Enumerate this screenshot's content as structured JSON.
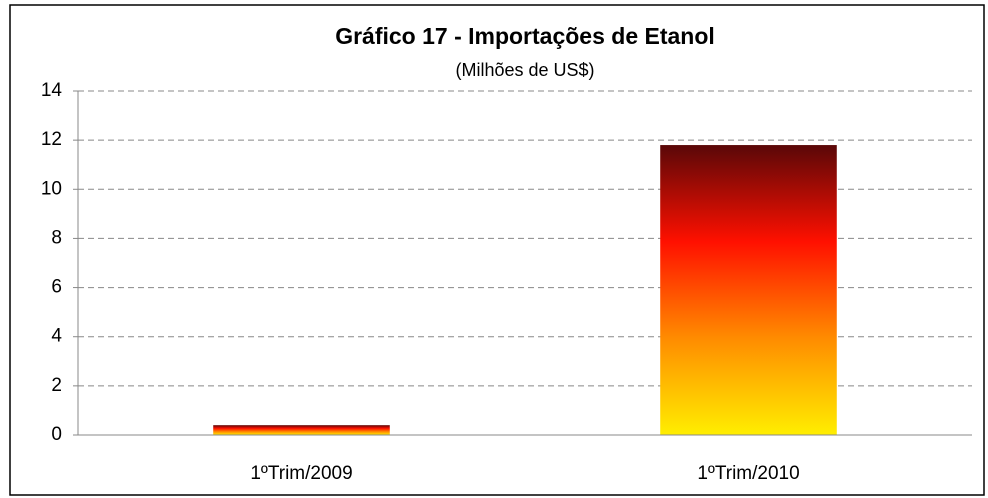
{
  "chart_data": {
    "type": "bar",
    "title": "Gráfico 17 - Importações de Etanol",
    "subtitle": "(Milhões de US$)",
    "categories": [
      "1ºTrim/2009",
      "1ºTrim/2010"
    ],
    "values": [
      0.4,
      11.8
    ],
    "colors": [
      "#ffee00",
      "#ff8c00",
      "#ff1000",
      "#5a0808"
    ],
    "ylim": [
      0,
      14
    ],
    "yticks": [
      0,
      2,
      4,
      6,
      8,
      10,
      12,
      14
    ],
    "grid": true
  }
}
